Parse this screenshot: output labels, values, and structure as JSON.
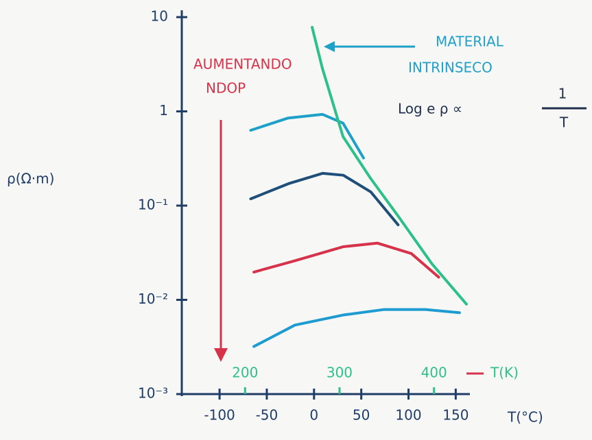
{
  "chart_data": {
    "type": "line",
    "y_label": "ρ(Ω·m)",
    "x_label": "T(°C)",
    "x2_label": "T(K)",
    "annotation_arrow": "AUMENTANDO",
    "annotation_arrow_sub": "NDOP",
    "annotation_intrinsic": [
      "MATERIAL",
      "INTRINSECO"
    ],
    "formula": {
      "lhs": "Log e ρ ∝",
      "numerator": "1",
      "denominator": "T"
    },
    "y_scale": "log",
    "ylim": [
      0.001,
      10
    ],
    "yticks": [
      10,
      1,
      {
        "value": 0.1,
        "label": "10⁻¹"
      },
      {
        "value": 0.01,
        "label": "10⁻²"
      },
      {
        "value": 0.001,
        "label": "10⁻³"
      }
    ],
    "xlim": [
      -140,
      165
    ],
    "xticks": [
      -100,
      -50,
      0,
      50,
      100,
      150
    ],
    "x2lim": [
      133,
      438
    ],
    "x2ticks": [
      200,
      300,
      400
    ],
    "series": [
      {
        "color": "#1ea0c8",
        "x": [
          -67,
          -27.4,
          8.9,
          30.7,
          52.4
        ],
        "values": [
          0.63,
          0.85,
          0.93,
          0.75,
          0.32
        ]
      },
      {
        "color": "#1f4e79",
        "x": [
          -67,
          -27,
          9,
          31,
          60,
          89
        ],
        "values": [
          0.118,
          0.171,
          0.22,
          0.21,
          0.14,
          0.0625
        ]
      },
      {
        "color": "#d6334a",
        "x": [
          -63.7,
          -20.2,
          30.7,
          67,
          103,
          132
        ],
        "values": [
          0.0197,
          0.026,
          0.0366,
          0.04,
          0.031,
          0.0174
        ]
      },
      {
        "color": "#1e9bd0",
        "x": [
          -63.7,
          -20.2,
          30.7,
          74.3,
          118,
          154
        ],
        "values": [
          0.0032,
          0.0054,
          0.0069,
          0.0079,
          0.0079,
          0.0073
        ]
      },
      {
        "color": "#2ec08a",
        "x": [
          -2,
          8.9,
          30.7,
          59.8,
          88.8,
          125,
          161.4
        ],
        "values": [
          7.8,
          2.85,
          0.54,
          0.195,
          0.078,
          0.024,
          0.009
        ]
      }
    ]
  }
}
